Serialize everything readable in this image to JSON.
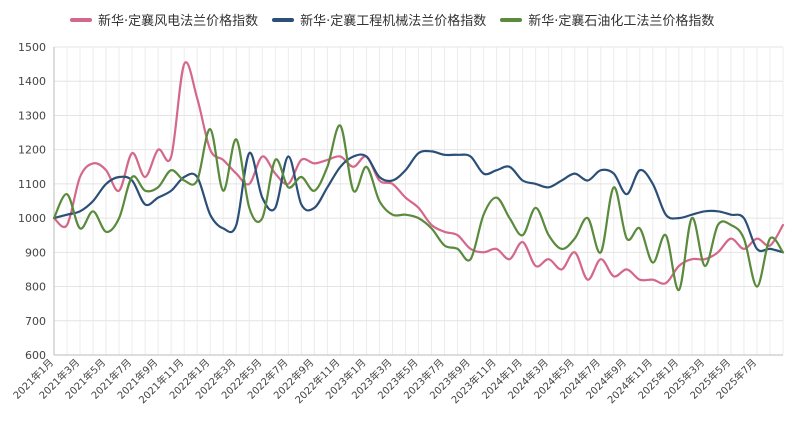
{
  "chart_data": {
    "type": "line",
    "title": "",
    "xlabel": "",
    "ylabel": "",
    "ylim": [
      600,
      1500
    ],
    "yticks": [
      600,
      700,
      800,
      900,
      1000,
      1100,
      1200,
      1300,
      1400,
      1500
    ],
    "grid": true,
    "legend_position": "top",
    "colors": {
      "wind": "#d4688a",
      "machinery": "#2c4f78",
      "petro": "#5a8a3c"
    },
    "xtick_labels": [
      "2021年1月",
      "2021年3月",
      "2021年5月",
      "2021年7月",
      "2021年9月",
      "2021年11月",
      "2022年1月",
      "2022年3月",
      "2022年5月",
      "2022年7月",
      "2022年9月",
      "2022年11月",
      "2023年1月",
      "2023年3月",
      "2023年5月",
      "2023年7月",
      "2023年9月",
      "2023年11月",
      "2024年1月",
      "2024年3月",
      "2024年5月",
      "2024年7月",
      "2024年9月",
      "2024年11月",
      "2025年1月",
      "2025年3月",
      "2025年5月",
      "2025年7月"
    ],
    "n_points": 57,
    "series": [
      {
        "name": "新华·定襄风电法兰价格指数",
        "key": "wind",
        "values": [
          1000,
          980,
          1120,
          1160,
          1140,
          1080,
          1190,
          1120,
          1200,
          1180,
          1450,
          1350,
          1200,
          1170,
          1130,
          1100,
          1180,
          1130,
          1100,
          1170,
          1160,
          1170,
          1180,
          1150,
          1180,
          1110,
          1100,
          1060,
          1030,
          980,
          960,
          950,
          910,
          900,
          910,
          880,
          930,
          860,
          880,
          850,
          900,
          820,
          880,
          830,
          850,
          820,
          820,
          810,
          860,
          880,
          880,
          900,
          940,
          910,
          940,
          920,
          980
        ]
      },
      {
        "name": "新华·定襄工程机械法兰价格指数",
        "key": "machinery",
        "values": [
          1000,
          1010,
          1020,
          1050,
          1100,
          1120,
          1110,
          1040,
          1060,
          1080,
          1120,
          1120,
          1010,
          970,
          980,
          1190,
          1060,
          1030,
          1180,
          1040,
          1030,
          1090,
          1150,
          1180,
          1180,
          1120,
          1110,
          1140,
          1190,
          1195,
          1185,
          1185,
          1180,
          1130,
          1140,
          1150,
          1110,
          1100,
          1090,
          1110,
          1130,
          1110,
          1140,
          1130,
          1070,
          1140,
          1100,
          1010,
          1000,
          1010,
          1020,
          1020,
          1010,
          1000,
          910,
          910,
          900
        ]
      },
      {
        "name": "新华·定襄石油化工法兰价格指数",
        "key": "petro",
        "values": [
          1000,
          1070,
          970,
          1020,
          960,
          1000,
          1120,
          1080,
          1090,
          1140,
          1110,
          1110,
          1260,
          1080,
          1230,
          1030,
          1000,
          1170,
          1090,
          1120,
          1080,
          1150,
          1270,
          1080,
          1150,
          1050,
          1010,
          1010,
          1000,
          970,
          920,
          910,
          880,
          1010,
          1060,
          1000,
          950,
          1030,
          950,
          910,
          940,
          1000,
          900,
          1090,
          940,
          970,
          870,
          950,
          790,
          1000,
          860,
          980,
          980,
          940,
          800,
          940,
          900
        ]
      }
    ]
  }
}
